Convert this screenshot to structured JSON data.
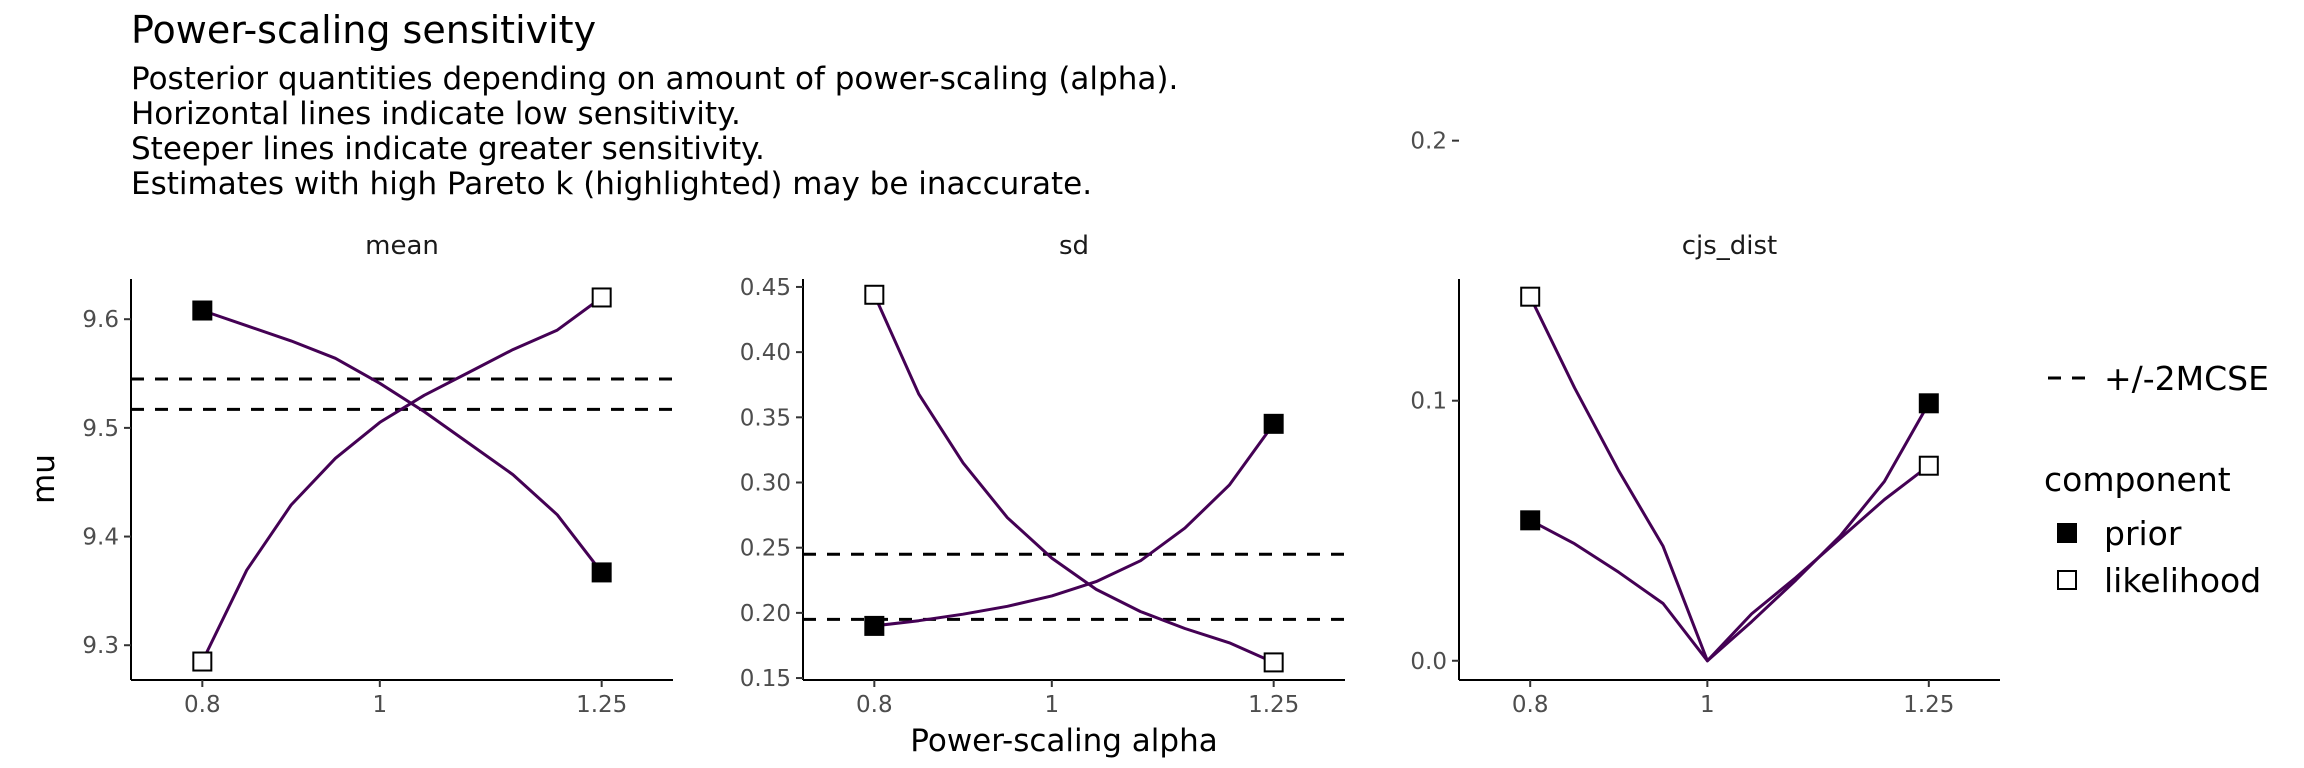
{
  "title": "Power-scaling sensitivity",
  "subtitle_lines": [
    "Posterior quantities depending on amount of power-scaling (alpha).",
    "Horizontal lines indicate low sensitivity.",
    "Steeper lines indicate greater sensitivity.",
    "Estimates with high Pareto k (highlighted) may be inaccurate."
  ],
  "xlabel": "Power-scaling alpha",
  "ylabel": "mu",
  "legend": {
    "mcse_label": "+/-2MCSE",
    "component_title": "component",
    "prior_label": "prior",
    "likelihood_label": "likelihood"
  },
  "colors": {
    "line": "#440154",
    "mcse": "#000000",
    "marker_prior": "#000000",
    "marker_likelihood": "#ffffff"
  },
  "chart_data": [
    {
      "type": "line",
      "title": "mean",
      "x_ticks": [
        0.8,
        1,
        1.25
      ],
      "x_tick_labels": [
        "0.8",
        "1",
        "1.25"
      ],
      "y_ticks": [
        9.3,
        9.4,
        9.5,
        9.6
      ],
      "y_tick_labels": [
        "9.3",
        "9.4",
        "9.5",
        "9.6"
      ],
      "ylim": [
        9.268,
        9.637
      ],
      "mcse_lines": [
        9.517,
        9.545
      ],
      "series": [
        {
          "name": "prior",
          "x": [
            0.8,
            0.85,
            0.9,
            0.95,
            1,
            1.05,
            1.1,
            1.15,
            1.2,
            1.25
          ],
          "values": [
            9.608,
            9.594,
            9.58,
            9.564,
            9.541,
            9.515,
            9.486,
            9.457,
            9.42,
            9.367
          ]
        },
        {
          "name": "likelihood",
          "x": [
            0.8,
            0.85,
            0.9,
            0.95,
            1,
            1.05,
            1.1,
            1.15,
            1.2,
            1.25
          ],
          "values": [
            9.285,
            9.369,
            9.429,
            9.472,
            9.505,
            9.53,
            9.551,
            9.572,
            9.59,
            9.62
          ]
        }
      ]
    },
    {
      "type": "line",
      "title": "sd",
      "x_ticks": [
        0.8,
        1,
        1.25
      ],
      "x_tick_labels": [
        "0.8",
        "1",
        "1.25"
      ],
      "y_ticks": [
        0.15,
        0.2,
        0.25,
        0.3,
        0.35,
        0.4,
        0.45
      ],
      "y_tick_labels": [
        "0.15",
        "0.20",
        "0.25",
        "0.30",
        "0.35",
        "0.40",
        "0.45"
      ],
      "ylim": [
        0.1485,
        0.4561
      ],
      "mcse_lines": [
        0.195,
        0.245
      ],
      "series": [
        {
          "name": "prior",
          "x": [
            0.8,
            0.85,
            0.9,
            0.95,
            1,
            1.05,
            1.1,
            1.15,
            1.2,
            1.25
          ],
          "values": [
            0.19,
            0.194,
            0.199,
            0.205,
            0.213,
            0.224,
            0.24,
            0.265,
            0.298,
            0.345
          ]
        },
        {
          "name": "likelihood",
          "x": [
            0.8,
            0.85,
            0.9,
            0.95,
            1,
            1.05,
            1.1,
            1.15,
            1.2,
            1.25
          ],
          "values": [
            0.444,
            0.368,
            0.315,
            0.273,
            0.242,
            0.218,
            0.201,
            0.188,
            0.177,
            0.162
          ]
        }
      ]
    },
    {
      "type": "line",
      "title": "cjs_dist",
      "x_ticks": [
        0.8,
        1,
        1.25
      ],
      "x_tick_labels": [
        "0.8",
        "1",
        "1.25"
      ],
      "y_ticks": [
        0,
        0.1,
        0.2
      ],
      "y_tick_labels": [
        "0.0",
        "0.1",
        "0.2"
      ],
      "ylim": [
        -0.0074,
        0.1468
      ],
      "mcse_lines": [],
      "series": [
        {
          "name": "prior",
          "x": [
            0.8,
            0.85,
            0.9,
            0.95,
            1,
            1.05,
            1.1,
            1.15,
            1.2,
            1.25
          ],
          "values": [
            0.054,
            0.045,
            0.034,
            0.022,
            0.0,
            0.015,
            0.031,
            0.048,
            0.069,
            0.099
          ]
        },
        {
          "name": "likelihood",
          "x": [
            0.8,
            0.85,
            0.9,
            0.95,
            1,
            1.05,
            1.1,
            1.15,
            1.2,
            1.25
          ],
          "values": [
            0.14,
            0.105,
            0.073,
            0.044,
            0.0,
            0.018,
            0.032,
            0.047,
            0.062,
            0.075
          ]
        }
      ]
    }
  ]
}
